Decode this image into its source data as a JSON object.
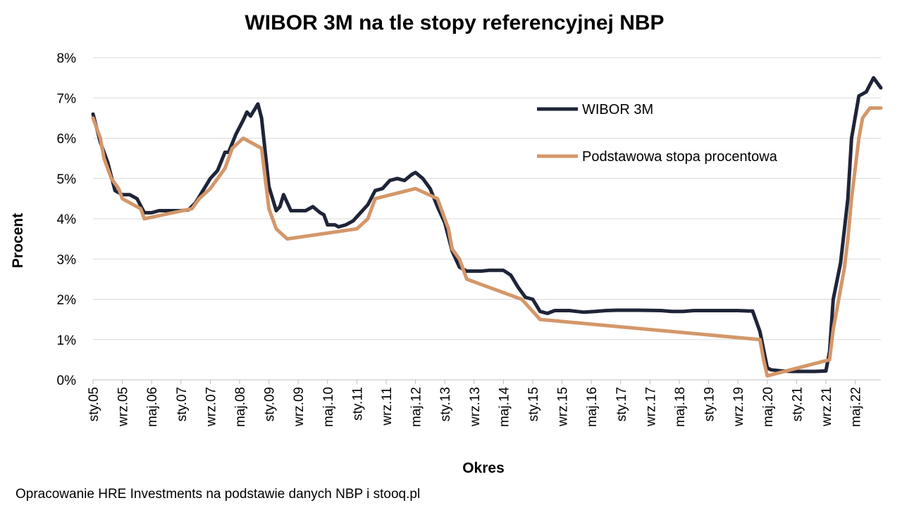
{
  "chart_data": {
    "type": "line",
    "title": "WIBOR 3M na tle stopy referencyjnej NBP",
    "xlabel": "Okres",
    "ylabel": "Procent",
    "ylim": [
      0,
      8
    ],
    "y_ticks": [
      "0%",
      "1%",
      "2%",
      "3%",
      "4%",
      "5%",
      "6%",
      "7%",
      "8%"
    ],
    "x_start_month": "2005-01",
    "x_end_month": "2022-12",
    "x_ticks": [
      "sty.05",
      "wrz.05",
      "maj.06",
      "sty.07",
      "wrz.07",
      "maj.08",
      "sty.09",
      "wrz.09",
      "maj.10",
      "sty.11",
      "wrz.11",
      "maj.12",
      "sty.13",
      "wrz.13",
      "maj.14",
      "sty.15",
      "wrz.15",
      "maj.16",
      "sty.17",
      "wrz.17",
      "maj.18",
      "sty.19",
      "wrz.19",
      "maj.20",
      "sty.21",
      "wrz.21",
      "maj.22"
    ],
    "grid": true,
    "legend_position": "top-right",
    "series": [
      {
        "name": "WIBOR 3M",
        "color": "#1f2438",
        "points": [
          [
            "2005-01",
            6.6
          ],
          [
            "2005-03",
            5.9
          ],
          [
            "2005-05",
            5.4
          ],
          [
            "2005-07",
            4.7
          ],
          [
            "2005-09",
            4.6
          ],
          [
            "2005-11",
            4.6
          ],
          [
            "2006-01",
            4.5
          ],
          [
            "2006-03",
            4.15
          ],
          [
            "2006-05",
            4.15
          ],
          [
            "2006-07",
            4.2
          ],
          [
            "2006-09",
            4.2
          ],
          [
            "2006-11",
            4.2
          ],
          [
            "2007-01",
            4.2
          ],
          [
            "2007-03",
            4.22
          ],
          [
            "2007-05",
            4.4
          ],
          [
            "2007-07",
            4.7
          ],
          [
            "2007-09",
            5.0
          ],
          [
            "2007-11",
            5.2
          ],
          [
            "2008-01",
            5.65
          ],
          [
            "2008-02",
            5.65
          ],
          [
            "2008-04",
            6.1
          ],
          [
            "2008-06",
            6.45
          ],
          [
            "2008-07",
            6.65
          ],
          [
            "2008-08",
            6.55
          ],
          [
            "2008-10",
            6.85
          ],
          [
            "2008-11",
            6.5
          ],
          [
            "2009-01",
            4.8
          ],
          [
            "2009-03",
            4.2
          ],
          [
            "2009-04",
            4.3
          ],
          [
            "2009-05",
            4.6
          ],
          [
            "2009-06",
            4.4
          ],
          [
            "2009-07",
            4.2
          ],
          [
            "2009-09",
            4.2
          ],
          [
            "2009-11",
            4.2
          ],
          [
            "2010-01",
            4.3
          ],
          [
            "2010-03",
            4.15
          ],
          [
            "2010-04",
            4.1
          ],
          [
            "2010-05",
            3.85
          ],
          [
            "2010-07",
            3.85
          ],
          [
            "2010-08",
            3.8
          ],
          [
            "2010-10",
            3.85
          ],
          [
            "2010-12",
            3.95
          ],
          [
            "2011-02",
            4.15
          ],
          [
            "2011-04",
            4.35
          ],
          [
            "2011-06",
            4.7
          ],
          [
            "2011-08",
            4.75
          ],
          [
            "2011-10",
            4.95
          ],
          [
            "2011-12",
            5.0
          ],
          [
            "2012-02",
            4.95
          ],
          [
            "2012-04",
            5.1
          ],
          [
            "2012-05",
            5.15
          ],
          [
            "2012-07",
            5.0
          ],
          [
            "2012-09",
            4.75
          ],
          [
            "2012-11",
            4.3
          ],
          [
            "2013-01",
            3.9
          ],
          [
            "2013-03",
            3.2
          ],
          [
            "2013-05",
            2.8
          ],
          [
            "2013-07",
            2.7
          ],
          [
            "2013-09",
            2.7
          ],
          [
            "2013-11",
            2.7
          ],
          [
            "2014-01",
            2.72
          ],
          [
            "2014-03",
            2.72
          ],
          [
            "2014-05",
            2.72
          ],
          [
            "2014-07",
            2.6
          ],
          [
            "2014-09",
            2.3
          ],
          [
            "2014-11",
            2.05
          ],
          [
            "2015-01",
            2.0
          ],
          [
            "2015-03",
            1.7
          ],
          [
            "2015-05",
            1.65
          ],
          [
            "2015-07",
            1.72
          ],
          [
            "2015-09",
            1.72
          ],
          [
            "2015-11",
            1.72
          ],
          [
            "2016-01",
            1.7
          ],
          [
            "2016-03",
            1.68
          ],
          [
            "2016-06",
            1.7
          ],
          [
            "2016-09",
            1.72
          ],
          [
            "2016-12",
            1.73
          ],
          [
            "2017-06",
            1.73
          ],
          [
            "2017-12",
            1.72
          ],
          [
            "2018-03",
            1.7
          ],
          [
            "2018-06",
            1.7
          ],
          [
            "2018-09",
            1.72
          ],
          [
            "2019-06",
            1.72
          ],
          [
            "2019-09",
            1.72
          ],
          [
            "2019-12",
            1.71
          ],
          [
            "2020-01",
            1.71
          ],
          [
            "2020-03",
            1.2
          ],
          [
            "2020-05",
            0.3
          ],
          [
            "2020-06",
            0.25
          ],
          [
            "2020-09",
            0.22
          ],
          [
            "2020-12",
            0.21
          ],
          [
            "2021-03",
            0.21
          ],
          [
            "2021-06",
            0.21
          ],
          [
            "2021-09",
            0.22
          ],
          [
            "2021-10",
            0.7
          ],
          [
            "2021-11",
            2.0
          ],
          [
            "2022-01",
            2.9
          ],
          [
            "2022-03",
            4.5
          ],
          [
            "2022-04",
            6.0
          ],
          [
            "2022-06",
            7.05
          ],
          [
            "2022-08",
            7.15
          ],
          [
            "2022-10",
            7.5
          ],
          [
            "2022-12",
            7.25
          ]
        ]
      },
      {
        "name": "Podstawowa stopa procentowa",
        "color": "#d4976a",
        "points": [
          [
            "2005-01",
            6.5
          ],
          [
            "2005-03",
            6.0
          ],
          [
            "2005-04",
            5.5
          ],
          [
            "2005-06",
            5.0
          ],
          [
            "2005-08",
            4.75
          ],
          [
            "2005-09",
            4.5
          ],
          [
            "2006-02",
            4.25
          ],
          [
            "2006-03",
            4.0
          ],
          [
            "2007-04",
            4.25
          ],
          [
            "2007-06",
            4.5
          ],
          [
            "2007-09",
            4.75
          ],
          [
            "2007-11",
            5.0
          ],
          [
            "2008-01",
            5.25
          ],
          [
            "2008-02",
            5.5
          ],
          [
            "2008-03",
            5.75
          ],
          [
            "2008-06",
            6.0
          ],
          [
            "2008-11",
            5.75
          ],
          [
            "2008-12",
            5.0
          ],
          [
            "2009-01",
            4.25
          ],
          [
            "2009-02",
            4.0
          ],
          [
            "2009-03",
            3.75
          ],
          [
            "2009-06",
            3.5
          ],
          [
            "2011-01",
            3.75
          ],
          [
            "2011-04",
            4.0
          ],
          [
            "2011-05",
            4.25
          ],
          [
            "2011-06",
            4.5
          ],
          [
            "2012-05",
            4.75
          ],
          [
            "2012-11",
            4.5
          ],
          [
            "2012-12",
            4.25
          ],
          [
            "2013-01",
            4.0
          ],
          [
            "2013-02",
            3.75
          ],
          [
            "2013-03",
            3.25
          ],
          [
            "2013-05",
            3.0
          ],
          [
            "2013-06",
            2.75
          ],
          [
            "2013-07",
            2.5
          ],
          [
            "2014-10",
            2.0
          ],
          [
            "2015-03",
            1.5
          ],
          [
            "2020-03",
            1.0
          ],
          [
            "2020-04",
            0.5
          ],
          [
            "2020-05",
            0.1
          ],
          [
            "2021-10",
            0.5
          ],
          [
            "2021-11",
            1.25
          ],
          [
            "2021-12",
            1.75
          ],
          [
            "2022-01",
            2.25
          ],
          [
            "2022-02",
            2.75
          ],
          [
            "2022-03",
            3.5
          ],
          [
            "2022-04",
            4.5
          ],
          [
            "2022-05",
            5.25
          ],
          [
            "2022-06",
            6.0
          ],
          [
            "2022-07",
            6.5
          ],
          [
            "2022-09",
            6.75
          ],
          [
            "2022-12",
            6.75
          ]
        ]
      }
    ]
  },
  "source_note": "Opracowanie HRE Investments na podstawie danych NBP i stooq.pl"
}
